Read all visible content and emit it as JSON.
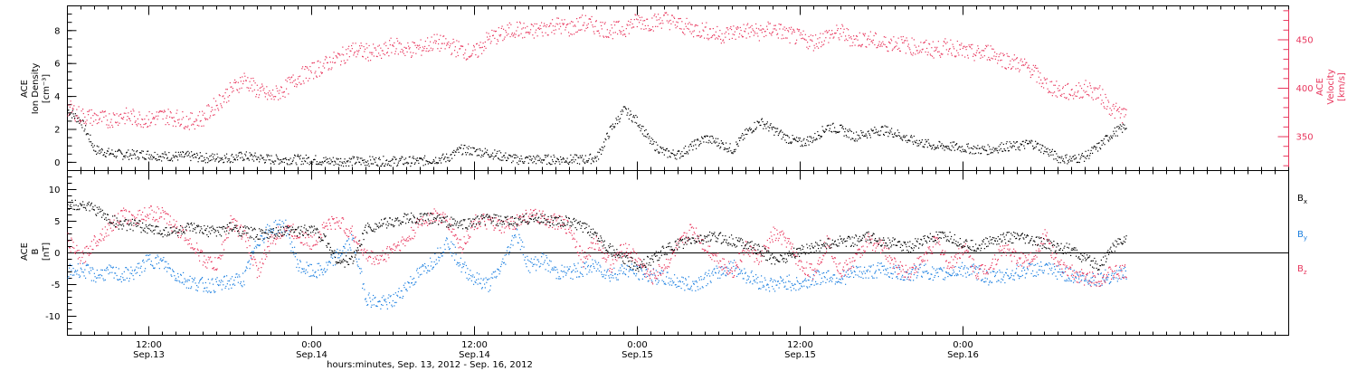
{
  "chart_data": [
    {
      "type": "scatter",
      "panel": "top",
      "ylabel_left": [
        "ACE",
        "Ion Density",
        "[cm⁻³]"
      ],
      "ylabel_right": [
        "ACE",
        "Velocity",
        "[km/s]"
      ],
      "y_left_ticks": [
        "0",
        "2",
        "4",
        "6",
        "8"
      ],
      "ylim_left": [
        -0.5,
        9.5
      ],
      "y_right_ticks": [
        "350",
        "400",
        "450"
      ],
      "ylim_right": [
        315,
        485
      ],
      "series": [
        {
          "name": "Ion Density",
          "axis": "left",
          "color": "#000000",
          "x_hours": [
            0,
            1,
            2,
            3,
            4,
            5,
            6,
            7,
            8,
            9,
            10,
            11,
            12,
            13,
            14,
            15,
            16,
            17,
            18,
            19,
            20,
            21,
            22,
            23,
            24,
            25,
            26,
            27,
            28,
            29,
            30,
            31,
            32,
            33,
            34,
            35,
            36,
            37,
            38,
            39,
            40,
            41,
            42,
            43,
            44,
            45,
            46,
            47,
            48,
            49,
            50,
            51,
            52,
            53,
            54,
            55,
            56,
            57,
            58,
            59,
            60,
            61,
            62,
            63,
            64,
            65,
            66,
            67,
            68,
            69,
            70,
            71,
            72,
            73,
            74,
            75,
            76,
            77,
            78
          ],
          "values": [
            3.2,
            2.5,
            0.8,
            0.6,
            0.5,
            0.5,
            0.5,
            0.4,
            0.4,
            0.4,
            0.3,
            0.3,
            0.3,
            0.4,
            0.3,
            0.2,
            0.2,
            0.2,
            0.2,
            0.1,
            0.1,
            0.1,
            0.1,
            0.1,
            0.1,
            0.1,
            0.1,
            0.2,
            0.3,
            0.8,
            0.7,
            0.6,
            0.4,
            0.2,
            0.2,
            0.2,
            0.2,
            0.2,
            0.2,
            0.3,
            2.0,
            3.2,
            2.5,
            1.2,
            0.6,
            0.5,
            1.0,
            1.5,
            1.2,
            0.8,
            1.8,
            2.5,
            2.0,
            1.5,
            1.2,
            1.5,
            2.2,
            2.0,
            1.6,
            1.8,
            2.0,
            1.8,
            1.4,
            1.2,
            1.0,
            1.0,
            0.9,
            0.8,
            0.8,
            1.0,
            1.0,
            1.2,
            0.8,
            0.3,
            0.2,
            0.4,
            1.0,
            1.8,
            2.2
          ]
        },
        {
          "name": "Velocity",
          "axis": "right",
          "color": "#e8365d",
          "x_hours": [
            0,
            1,
            2,
            3,
            4,
            5,
            6,
            7,
            8,
            9,
            10,
            11,
            12,
            13,
            14,
            15,
            16,
            17,
            18,
            19,
            20,
            21,
            22,
            23,
            24,
            25,
            26,
            27,
            28,
            29,
            30,
            31,
            32,
            33,
            34,
            35,
            36,
            37,
            38,
            39,
            40,
            41,
            42,
            43,
            44,
            45,
            46,
            47,
            48,
            49,
            50,
            51,
            52,
            53,
            54,
            55,
            56,
            57,
            58,
            59,
            60,
            61,
            62,
            63,
            64,
            65,
            66,
            67,
            68,
            69,
            70,
            71,
            72,
            73,
            74,
            75,
            76,
            77,
            78
          ],
          "values": [
            380,
            372,
            370,
            368,
            372,
            370,
            368,
            372,
            370,
            366,
            370,
            385,
            398,
            410,
            398,
            392,
            400,
            412,
            418,
            425,
            432,
            440,
            438,
            436,
            445,
            440,
            442,
            448,
            445,
            440,
            436,
            452,
            456,
            462,
            458,
            462,
            466,
            462,
            468,
            464,
            460,
            462,
            470,
            468,
            472,
            466,
            462,
            460,
            455,
            458,
            460,
            458,
            462,
            456,
            452,
            448,
            455,
            458,
            450,
            452,
            446,
            448,
            444,
            442,
            440,
            444,
            438,
            436,
            438,
            430,
            426,
            420,
            405,
            398,
            396,
            400,
            395,
            378,
            372
          ]
        }
      ]
    },
    {
      "type": "scatter",
      "panel": "bottom",
      "ylabel": [
        "ACE",
        "B",
        "[nT]"
      ],
      "y_ticks": [
        "-10",
        "-5",
        "0",
        "5",
        "10"
      ],
      "ylim": [
        -13,
        13
      ],
      "zero_line": true,
      "x_axis": {
        "tick_times": [
          "12:00",
          "0:00",
          "12:00",
          "0:00",
          "12:00",
          "0:00"
        ],
        "tick_dates": [
          "Sep.13",
          "Sep.14",
          "Sep.14",
          "Sep.15",
          "Sep.15",
          "Sep.16"
        ],
        "xlabel": "hours:minutes, Sep. 13, 2012 - Sep. 16, 2012",
        "xlim_hours": [
          0,
          90
        ]
      },
      "series": [
        {
          "name": "Bx",
          "color": "#000000",
          "x_hours": [
            0,
            1,
            2,
            3,
            4,
            5,
            6,
            7,
            8,
            9,
            10,
            11,
            12,
            13,
            14,
            15,
            16,
            17,
            18,
            19,
            20,
            21,
            22,
            23,
            24,
            25,
            26,
            27,
            28,
            29,
            30,
            31,
            32,
            33,
            34,
            35,
            36,
            37,
            38,
            39,
            40,
            41,
            42,
            43,
            44,
            45,
            46,
            47,
            48,
            49,
            50,
            51,
            52,
            53,
            54,
            55,
            56,
            57,
            58,
            59,
            60,
            61,
            62,
            63,
            64,
            65,
            66,
            67,
            68,
            69,
            70,
            71,
            72,
            73,
            74,
            75,
            76,
            77,
            78
          ],
          "values": [
            7.5,
            7.8,
            7.0,
            5.5,
            4.5,
            4.5,
            3.8,
            3.5,
            3.5,
            4.0,
            3.5,
            3.5,
            4.0,
            3.5,
            3.0,
            3.0,
            3.5,
            3.5,
            4.0,
            2.0,
            -1.5,
            -1.0,
            4.0,
            4.5,
            5.0,
            5.5,
            5.5,
            5.5,
            5.0,
            4.5,
            5.0,
            5.5,
            5.0,
            5.0,
            5.5,
            5.5,
            5.0,
            5.0,
            4.0,
            3.0,
            0.5,
            -1.0,
            -2.0,
            -1.0,
            0.5,
            1.5,
            2.0,
            2.5,
            2.5,
            2.0,
            1.5,
            0.5,
            -1.0,
            -0.5,
            0.5,
            1.0,
            1.5,
            2.0,
            2.0,
            2.5,
            2.0,
            1.5,
            1.0,
            2.0,
            2.5,
            2.5,
            1.5,
            1.0,
            2.0,
            2.5,
            2.5,
            2.0,
            1.5,
            1.0,
            0.5,
            -1.0,
            -2.0,
            1.0,
            2.5
          ]
        },
        {
          "name": "By",
          "color": "#1b7fe0",
          "x_hours": [
            0,
            1,
            2,
            3,
            4,
            5,
            6,
            7,
            8,
            9,
            10,
            11,
            12,
            13,
            14,
            15,
            16,
            17,
            18,
            19,
            20,
            21,
            22,
            23,
            24,
            25,
            26,
            27,
            28,
            29,
            30,
            31,
            32,
            33,
            34,
            35,
            36,
            37,
            38,
            39,
            40,
            41,
            42,
            43,
            44,
            45,
            46,
            47,
            48,
            49,
            50,
            51,
            52,
            53,
            54,
            55,
            56,
            57,
            58,
            59,
            60,
            61,
            62,
            63,
            64,
            65,
            66,
            67,
            68,
            69,
            70,
            71,
            72,
            73,
            74,
            75,
            76,
            77,
            78
          ],
          "values": [
            -3,
            -2.5,
            -3.5,
            -3,
            -3.5,
            -3,
            -1,
            -1.5,
            -3.5,
            -4.5,
            -5,
            -5,
            -4.5,
            -4,
            2,
            4,
            4.5,
            -2,
            -3,
            -2.5,
            0,
            2,
            -7,
            -8,
            -7.5,
            -5,
            -3,
            -1,
            2,
            -2,
            -4,
            -5,
            -2,
            3.5,
            -2,
            -1,
            -3,
            -3,
            -2.5,
            -2,
            -3.5,
            -2.5,
            -3,
            -3.5,
            -4,
            -4.5,
            -5,
            -4,
            -3,
            -2,
            -3.5,
            -4.5,
            -5,
            -4.5,
            -5,
            -4,
            -3.5,
            -4,
            -3,
            -3,
            -2.5,
            -3,
            -3.5,
            -2.5,
            -3.5,
            -3,
            -2.5,
            -3,
            -4,
            -3.5,
            -3,
            -2.5,
            -2.5,
            -3,
            -3.5,
            -4,
            -4,
            -3.5,
            -3
          ]
        },
        {
          "name": "Bz",
          "color": "#e8365d",
          "x_hours": [
            0,
            1,
            2,
            3,
            4,
            5,
            6,
            7,
            8,
            9,
            10,
            11,
            12,
            13,
            14,
            15,
            16,
            17,
            18,
            19,
            20,
            21,
            22,
            23,
            24,
            25,
            26,
            27,
            28,
            29,
            30,
            31,
            32,
            33,
            34,
            35,
            36,
            37,
            38,
            39,
            40,
            41,
            42,
            43,
            44,
            45,
            46,
            47,
            48,
            49,
            50,
            51,
            52,
            53,
            54,
            55,
            56,
            57,
            58,
            59,
            60,
            61,
            62,
            63,
            64,
            65,
            66,
            67,
            68,
            69,
            70,
            71,
            72,
            73,
            74,
            75,
            76,
            77,
            78
          ],
          "values": [
            2,
            -1,
            2,
            4,
            6,
            5.5,
            6.5,
            6,
            4,
            2,
            -1,
            -2,
            5,
            3,
            -3,
            2,
            4,
            3,
            1.5,
            4.5,
            5,
            3,
            -0.5,
            -1,
            1,
            2,
            5,
            6,
            5,
            1,
            5,
            5,
            4,
            5,
            6,
            5.5,
            5,
            4,
            -1,
            2,
            -2,
            1,
            -1,
            -4,
            -2,
            1,
            4,
            1,
            -1,
            -3,
            1,
            -1,
            3,
            2,
            -2,
            -3,
            2,
            -3,
            -1,
            2,
            1,
            -2,
            -3,
            -1,
            2,
            -2,
            1,
            -3,
            -2,
            1,
            -1,
            -1,
            3,
            -2,
            -3,
            -4,
            -4,
            -3,
            -3
          ]
        }
      ],
      "legend": [
        {
          "label": "B",
          "sub": "x",
          "color": "#000000"
        },
        {
          "label": "B",
          "sub": "y",
          "color": "#1b7fe0"
        },
        {
          "label": "B",
          "sub": "z",
          "color": "#e8365d"
        }
      ]
    }
  ]
}
